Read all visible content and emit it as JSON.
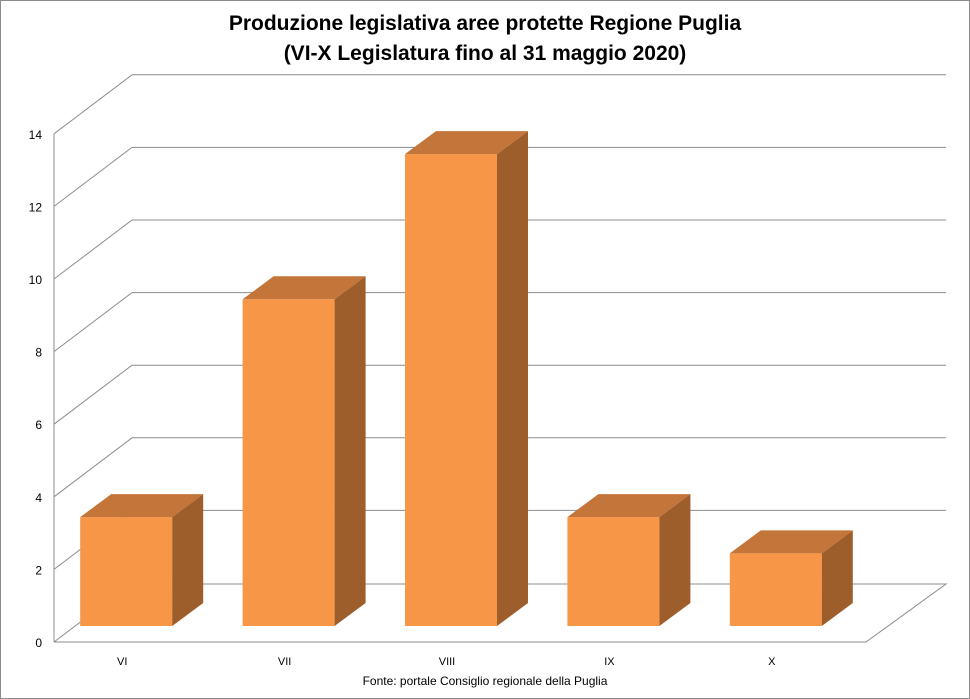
{
  "chart_data": {
    "type": "bar",
    "title_lines": [
      "Produzione legislativa aree protette Regione Puglia",
      "(VI-X Legislatura fino al 31 maggio 2020)"
    ],
    "categories": [
      "VI",
      "VII",
      "VIII",
      "IX",
      "X"
    ],
    "values": [
      3,
      9,
      13,
      3,
      2
    ],
    "ylim": [
      0,
      14
    ],
    "yticks": [
      0,
      2,
      4,
      6,
      8,
      10,
      12,
      14
    ],
    "grid": true,
    "legend": "none",
    "style": "3d-column",
    "source": "Fonte: portale Consiglio regionale della Puglia"
  },
  "colors": {
    "bar_front": "#f79646",
    "bar_top": "#c47539",
    "bar_side": "#9e5e2c",
    "grid": "#8c8c8c"
  }
}
